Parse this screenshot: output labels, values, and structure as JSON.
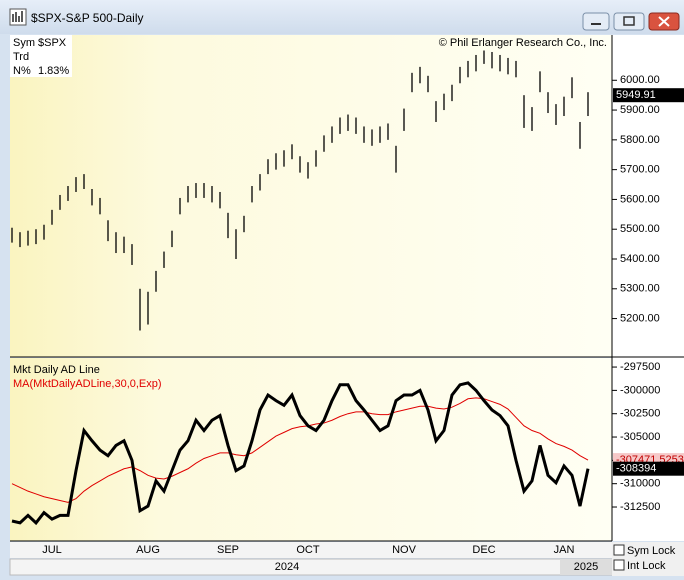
{
  "window": {
    "title": "$SPX-S&P 500-Daily"
  },
  "info": {
    "sym_label": "Sym",
    "sym": "$SPX",
    "trd": "Trd",
    "n_label": "N%",
    "n_value": "1.83%",
    "copyright": "© Phil Erlanger Research Co., Inc."
  },
  "axis": {
    "years": [
      "2024",
      "2025"
    ],
    "sym_lock": "Sym Lock",
    "int_lock": "Int Lock"
  },
  "chart_data": [
    {
      "type": "hl_bar",
      "color": "#000000",
      "high": [
        5505,
        5490,
        5495,
        5500,
        5515,
        5565,
        5615,
        5645,
        5675,
        5685,
        5635,
        5605,
        5530,
        5490,
        5475,
        5450,
        5300,
        5290,
        5360,
        5425,
        5495,
        5605,
        5645,
        5655,
        5655,
        5645,
        5625,
        5555,
        5500,
        5545,
        5645,
        5685,
        5735,
        5755,
        5765,
        5785,
        5745,
        5725,
        5765,
        5815,
        5845,
        5875,
        5885,
        5875,
        5845,
        5835,
        5845,
        5855,
        5780,
        5905,
        6025,
        6045,
        6015,
        5930,
        5955,
        5985,
        6045,
        6065,
        6085,
        6100,
        6095,
        6085,
        6075,
        6065,
        5950,
        5910,
        6030,
        5960,
        5920,
        5945,
        6010,
        5860,
        5960
      ],
      "low": [
        5455,
        5440,
        5445,
        5450,
        5465,
        5515,
        5565,
        5595,
        5625,
        5635,
        5580,
        5550,
        5460,
        5420,
        5420,
        5380,
        5160,
        5180,
        5290,
        5370,
        5440,
        5550,
        5590,
        5605,
        5605,
        5590,
        5570,
        5470,
        5400,
        5490,
        5590,
        5630,
        5685,
        5700,
        5710,
        5735,
        5690,
        5670,
        5710,
        5760,
        5790,
        5820,
        5830,
        5820,
        5790,
        5780,
        5790,
        5800,
        5690,
        5830,
        5960,
        5990,
        5960,
        5860,
        5900,
        5930,
        5990,
        6010,
        6030,
        6055,
        6040,
        6030,
        6020,
        6010,
        5840,
        5830,
        5960,
        5890,
        5850,
        5880,
        5940,
        5770,
        5880
      ],
      "last_value": 5949.91,
      "ylim": [
        5071,
        6152
      ],
      "yticks": [
        {
          "value": 5200,
          "label": "5200.00"
        },
        {
          "value": 5300,
          "label": "5300.00"
        },
        {
          "value": 5400,
          "label": "5400.00"
        },
        {
          "value": 5500,
          "label": "5500.00"
        },
        {
          "value": 5600,
          "label": "5600.00"
        },
        {
          "value": 5700,
          "label": "5700.00"
        },
        {
          "value": 5800,
          "label": "5800.00"
        },
        {
          "value": 5900,
          "label": "5900.00"
        },
        {
          "value": 6000,
          "label": "6000.00"
        }
      ]
    },
    {
      "type": "line",
      "categories": [
        null,
        null,
        null,
        null,
        null,
        "JUL",
        null,
        null,
        null,
        null,
        null,
        null,
        null,
        null,
        null,
        null,
        null,
        "AUG",
        null,
        null,
        null,
        null,
        null,
        null,
        null,
        null,
        null,
        "SEP",
        null,
        null,
        null,
        null,
        null,
        null,
        null,
        null,
        null,
        "OCT",
        null,
        null,
        null,
        null,
        null,
        null,
        null,
        null,
        null,
        null,
        null,
        "NOV",
        null,
        null,
        null,
        null,
        null,
        null,
        null,
        null,
        null,
        "DEC",
        null,
        null,
        null,
        null,
        null,
        null,
        null,
        null,
        null,
        "JAN",
        null,
        null,
        null
      ],
      "series": [
        {
          "name": "Mkt Daily AD Line",
          "color": "#000000",
          "values": [
            -314000,
            -314200,
            -313400,
            -314200,
            -313100,
            -313800,
            -313400,
            -313400,
            -308600,
            -304300,
            -305400,
            -306400,
            -307000,
            -305900,
            -305400,
            -307500,
            -312900,
            -312400,
            -309700,
            -310800,
            -308600,
            -306400,
            -305400,
            -303200,
            -304300,
            -303200,
            -302700,
            -305900,
            -308600,
            -308100,
            -305400,
            -302100,
            -300500,
            -301100,
            -301600,
            -300500,
            -302700,
            -303800,
            -304300,
            -303200,
            -301100,
            -299400,
            -299400,
            -301100,
            -302100,
            -303200,
            -304300,
            -303800,
            -301100,
            -300500,
            -300500,
            -300000,
            -302100,
            -305400,
            -304300,
            -300500,
            -299400,
            -299200,
            -300000,
            -301100,
            -302100,
            -302700,
            -303800,
            -307500,
            -310800,
            -309700,
            -305900,
            -309100,
            -309900,
            -308100,
            -309100,
            -312400,
            -308394
          ]
        },
        {
          "name": "MA(MktDailyADLine,30,0,Exp)",
          "color": "#e00000",
          "values": [
            -310000,
            -310400,
            -310800,
            -311100,
            -311400,
            -311600,
            -311800,
            -312000,
            -311600,
            -310800,
            -310200,
            -309700,
            -309200,
            -308800,
            -308400,
            -308200,
            -308600,
            -309100,
            -309400,
            -309500,
            -309200,
            -308800,
            -308400,
            -307800,
            -307300,
            -307000,
            -306700,
            -306700,
            -306900,
            -307000,
            -306700,
            -306100,
            -305500,
            -304900,
            -304500,
            -304100,
            -303900,
            -303800,
            -303600,
            -303500,
            -303200,
            -302800,
            -302500,
            -302300,
            -302300,
            -302500,
            -302600,
            -302600,
            -302300,
            -302100,
            -301900,
            -301700,
            -301700,
            -301900,
            -302000,
            -301800,
            -301400,
            -300900,
            -300800,
            -300900,
            -301200,
            -301500,
            -302000,
            -302900,
            -303800,
            -304300,
            -304600,
            -305200,
            -305700,
            -306000,
            -306400,
            -307000,
            -307471.5253
          ]
        }
      ],
      "ylim": [
        -316142,
        -296530
      ],
      "yticks": [
        -297500,
        -300000,
        -302500,
        -305000,
        -307500,
        -310000,
        -312500
      ]
    }
  ]
}
